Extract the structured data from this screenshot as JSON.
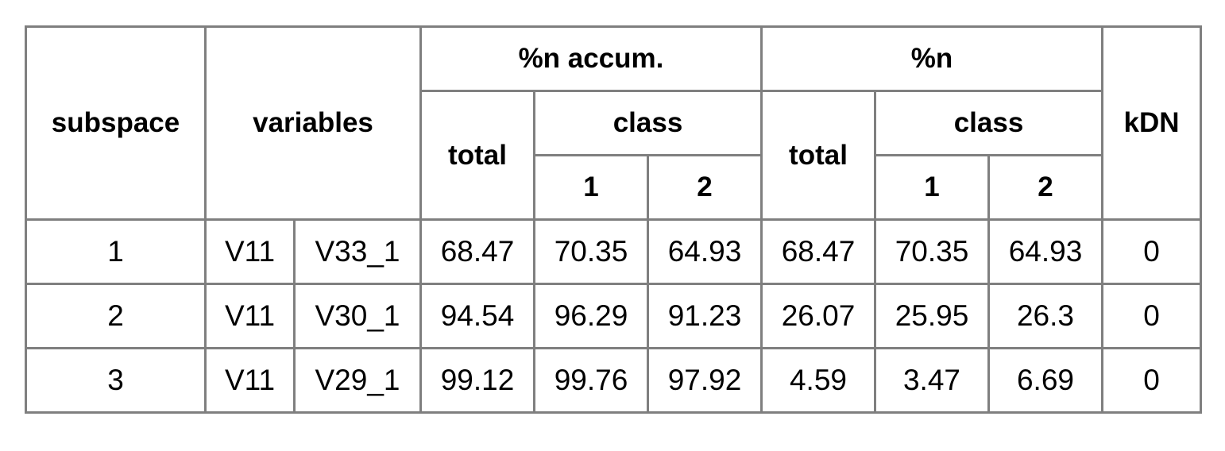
{
  "headers": {
    "subspace": "subspace",
    "variables": "variables",
    "accum_group": "%n accum.",
    "pct_group": "%n",
    "kdn": "kDN",
    "accum_total": "total",
    "accum_class": "class",
    "accum_class_1": "1",
    "accum_class_2": "2",
    "pct_total": "total",
    "pct_class": "class",
    "pct_class_1": "1",
    "pct_class_2": "2"
  },
  "rows": [
    {
      "subspace": "1",
      "var_a": "V11",
      "var_b": "V33_1",
      "accum_total": "68.47",
      "accum_c1": "70.35",
      "accum_c2": "64.93",
      "pct_total": "68.47",
      "pct_c1": "70.35",
      "pct_c2": "64.93",
      "kdn": "0"
    },
    {
      "subspace": "2",
      "var_a": "V11",
      "var_b": "V30_1",
      "accum_total": "94.54",
      "accum_c1": "96.29",
      "accum_c2": "91.23",
      "pct_total": "26.07",
      "pct_c1": "25.95",
      "pct_c2": "26.3",
      "kdn": "0"
    },
    {
      "subspace": "3",
      "var_a": "V11",
      "var_b": "V29_1",
      "accum_total": "99.12",
      "accum_c1": "99.76",
      "accum_c2": "97.92",
      "pct_total": "4.59",
      "pct_c1": "3.47",
      "pct_c2": "6.69",
      "kdn": "0"
    }
  ]
}
